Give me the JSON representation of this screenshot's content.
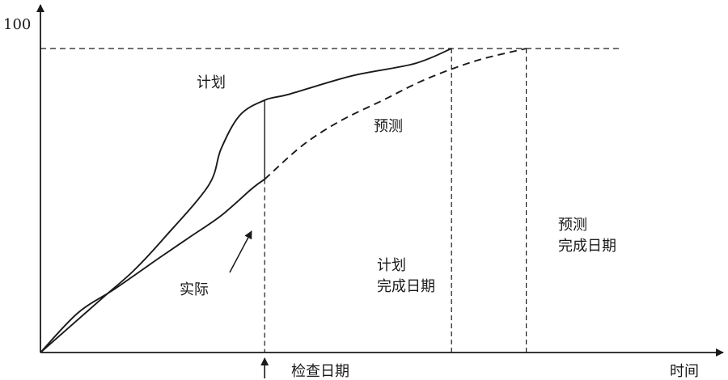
{
  "chart_data": {
    "type": "line",
    "title": "",
    "xlabel": "时间",
    "ylabel": "",
    "y_tick_label": "100",
    "ylim": [
      0,
      100
    ],
    "xlim": [
      0,
      100
    ],
    "grid": false,
    "series": [
      {
        "name": "计划",
        "style": "solid",
        "points": [
          [
            0,
            0
          ],
          [
            5,
            9
          ],
          [
            10,
            18
          ],
          [
            15,
            27
          ],
          [
            20,
            38
          ],
          [
            27,
            55
          ],
          [
            29,
            67
          ],
          [
            32,
            78
          ],
          [
            36,
            83
          ],
          [
            40,
            85
          ],
          [
            50,
            91
          ],
          [
            60,
            95
          ],
          [
            66,
            100
          ]
        ]
      },
      {
        "name": "实际",
        "style": "solid",
        "points": [
          [
            0,
            0
          ],
          [
            6,
            13
          ],
          [
            12,
            21
          ],
          [
            19,
            31
          ],
          [
            24,
            38
          ],
          [
            29,
            45
          ],
          [
            34,
            54
          ],
          [
            36,
            57
          ]
        ]
      },
      {
        "name": "预测",
        "style": "dashed",
        "points": [
          [
            36,
            57
          ],
          [
            42,
            68
          ],
          [
            48,
            76
          ],
          [
            55,
            83
          ],
          [
            62,
            90
          ],
          [
            70,
            96
          ],
          [
            78,
            100
          ]
        ]
      }
    ],
    "annotations": {
      "plan_label": "计划",
      "forecast_label": "预测",
      "actual_label": "实际",
      "check_date": {
        "x": 36,
        "label": "检查日期"
      },
      "plan_completion": {
        "x": 66,
        "line1": "计划",
        "line2": "完成日期"
      },
      "forecast_completion": {
        "x": 78,
        "line1": "预测",
        "line2": "完成日期"
      },
      "target_level": 100
    }
  }
}
